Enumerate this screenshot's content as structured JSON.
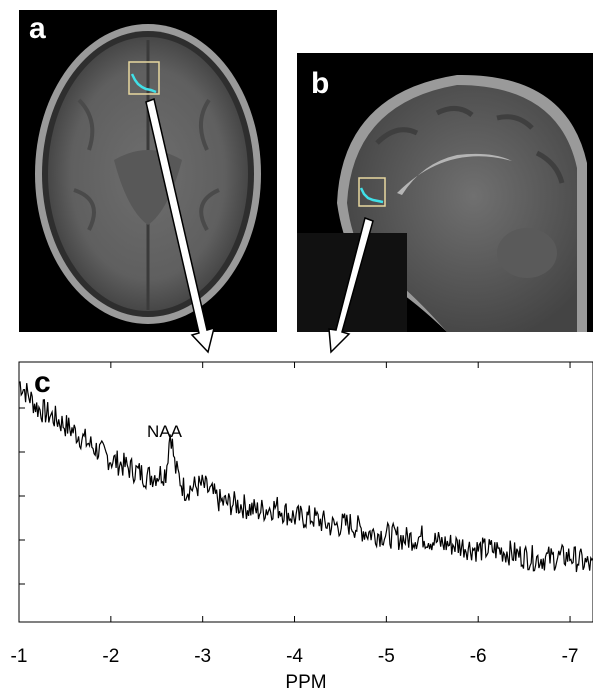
{
  "panels": {
    "a": {
      "letter": "a",
      "view": "axial T1 MRI slice with MRS voxel"
    },
    "b": {
      "letter": "b",
      "view": "sagittal T1 MRI slice with MRS voxel"
    }
  },
  "colors": {
    "voxel_box": "#e8d8a0",
    "voxel_spectrum": "#40e0e8",
    "arrow_fill": "#ffffff",
    "arrow_stroke": "#000000",
    "spectrum_line": "#000000"
  },
  "chart_data": {
    "type": "line",
    "panel_letter": "c",
    "xlabel": "PPM",
    "ylabel": "",
    "xlim": [
      -1,
      -7.25
    ],
    "x_reversed": true,
    "xticks": [
      -1,
      -2,
      -3,
      -4,
      -5,
      -6,
      -7
    ],
    "xtick_labels": [
      "-1",
      "-2",
      "-3",
      "-4",
      "-5",
      "-6",
      "-7"
    ],
    "yticks_count": 5,
    "annotations": [
      {
        "text": "NAA",
        "x": -2.65
      }
    ],
    "series": [
      {
        "x": [
          -1.0,
          -1.2,
          -1.4,
          -1.6,
          -1.8,
          -2.0,
          -2.2,
          -2.4,
          -2.6,
          -2.65,
          -2.7,
          -2.8,
          -3.0,
          -3.2,
          -3.4,
          -3.6,
          -3.8,
          -4.0,
          -4.2,
          -4.4,
          -4.6,
          -4.8,
          -5.0,
          -5.2,
          -5.4,
          -5.6,
          -5.8,
          -6.0,
          -6.2,
          -6.4,
          -6.6,
          -6.8,
          -7.0,
          -7.25
        ],
        "values": [
          1.0,
          0.88,
          0.83,
          0.77,
          0.7,
          0.64,
          0.6,
          0.56,
          0.58,
          0.78,
          0.6,
          0.5,
          0.52,
          0.44,
          0.43,
          0.4,
          0.42,
          0.37,
          0.37,
          0.33,
          0.34,
          0.3,
          0.29,
          0.27,
          0.28,
          0.25,
          0.24,
          0.22,
          0.22,
          0.2,
          0.18,
          0.18,
          0.19,
          0.14
        ]
      }
    ]
  }
}
